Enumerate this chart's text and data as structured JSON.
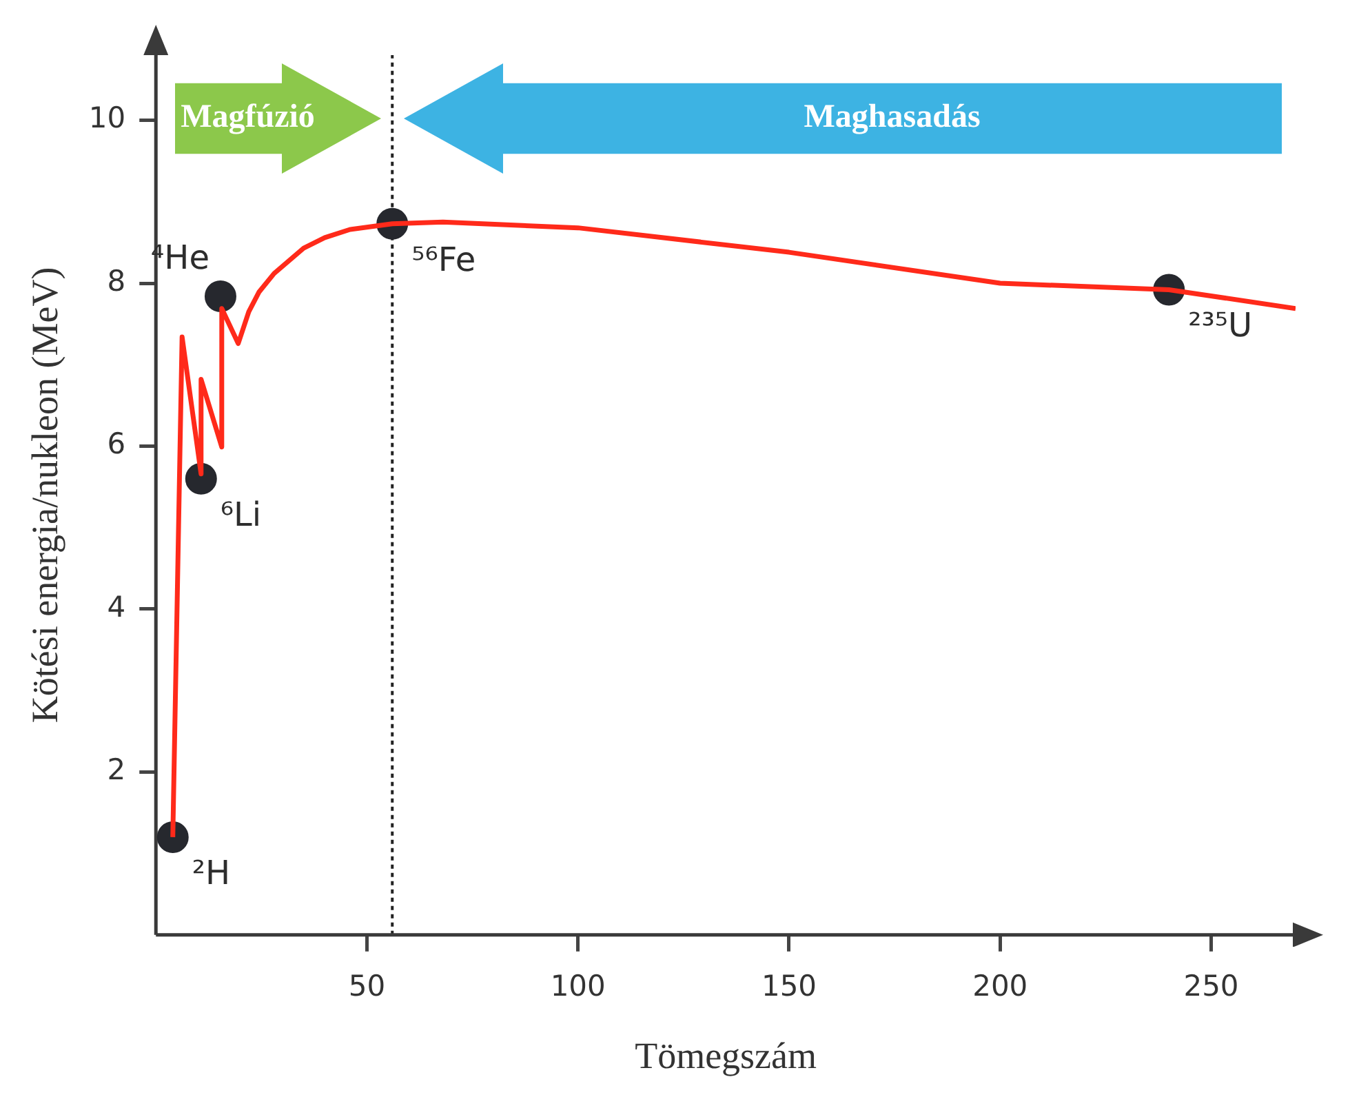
{
  "chart_data": {
    "type": "line",
    "xlabel": "Tömegszám",
    "ylabel": "Kötési energia/nukleon (MeV)",
    "xlim": [
      0,
      270
    ],
    "ylim": [
      0,
      10.8
    ],
    "xticks": [
      50,
      100,
      150,
      200,
      250
    ],
    "yticks": [
      2,
      4,
      6,
      8,
      10
    ],
    "grid": false,
    "legend": false,
    "series": [
      {
        "color": "#ff2a1a",
        "marker": "none",
        "line_style": "solid",
        "x": [
          4,
          6.2,
          10.7,
          10.7,
          15.6,
          15.6,
          19.5,
          22,
          24.4,
          28,
          35,
          40,
          46,
          56,
          68,
          100,
          150,
          200,
          240,
          270
        ],
        "values": [
          1.2,
          7.34,
          5.66,
          6.82,
          5.99,
          7.69,
          7.26,
          7.65,
          7.89,
          8.12,
          8.43,
          8.56,
          8.66,
          8.73,
          8.75,
          8.68,
          8.38,
          8.0,
          7.92,
          7.69
        ]
      },
      {
        "type": "scatter",
        "color": "#26282e",
        "marker": "circle",
        "x": [
          4,
          10.7,
          15.3,
          56,
          240
        ],
        "values": [
          1.2,
          5.6,
          7.84,
          8.73,
          7.92
        ]
      }
    ],
    "ref_lines": [
      {
        "axis": "x",
        "value": 56,
        "label": null,
        "color": "#222222",
        "line_style": "dotted"
      }
    ],
    "annotations": [
      {
        "text": "²H",
        "x": 4,
        "y": 1.2
      },
      {
        "text": "⁶Li",
        "x": 10.7,
        "y": 5.6
      },
      {
        "text": "⁴He",
        "x": 15.3,
        "y": 7.84
      },
      {
        "text": "⁵⁶Fe",
        "x": 56,
        "y": 8.73
      },
      {
        "text": "²³⁵U",
        "x": 240,
        "y": 7.92
      },
      "Magfúzió",
      "Maghasadás"
    ]
  }
}
